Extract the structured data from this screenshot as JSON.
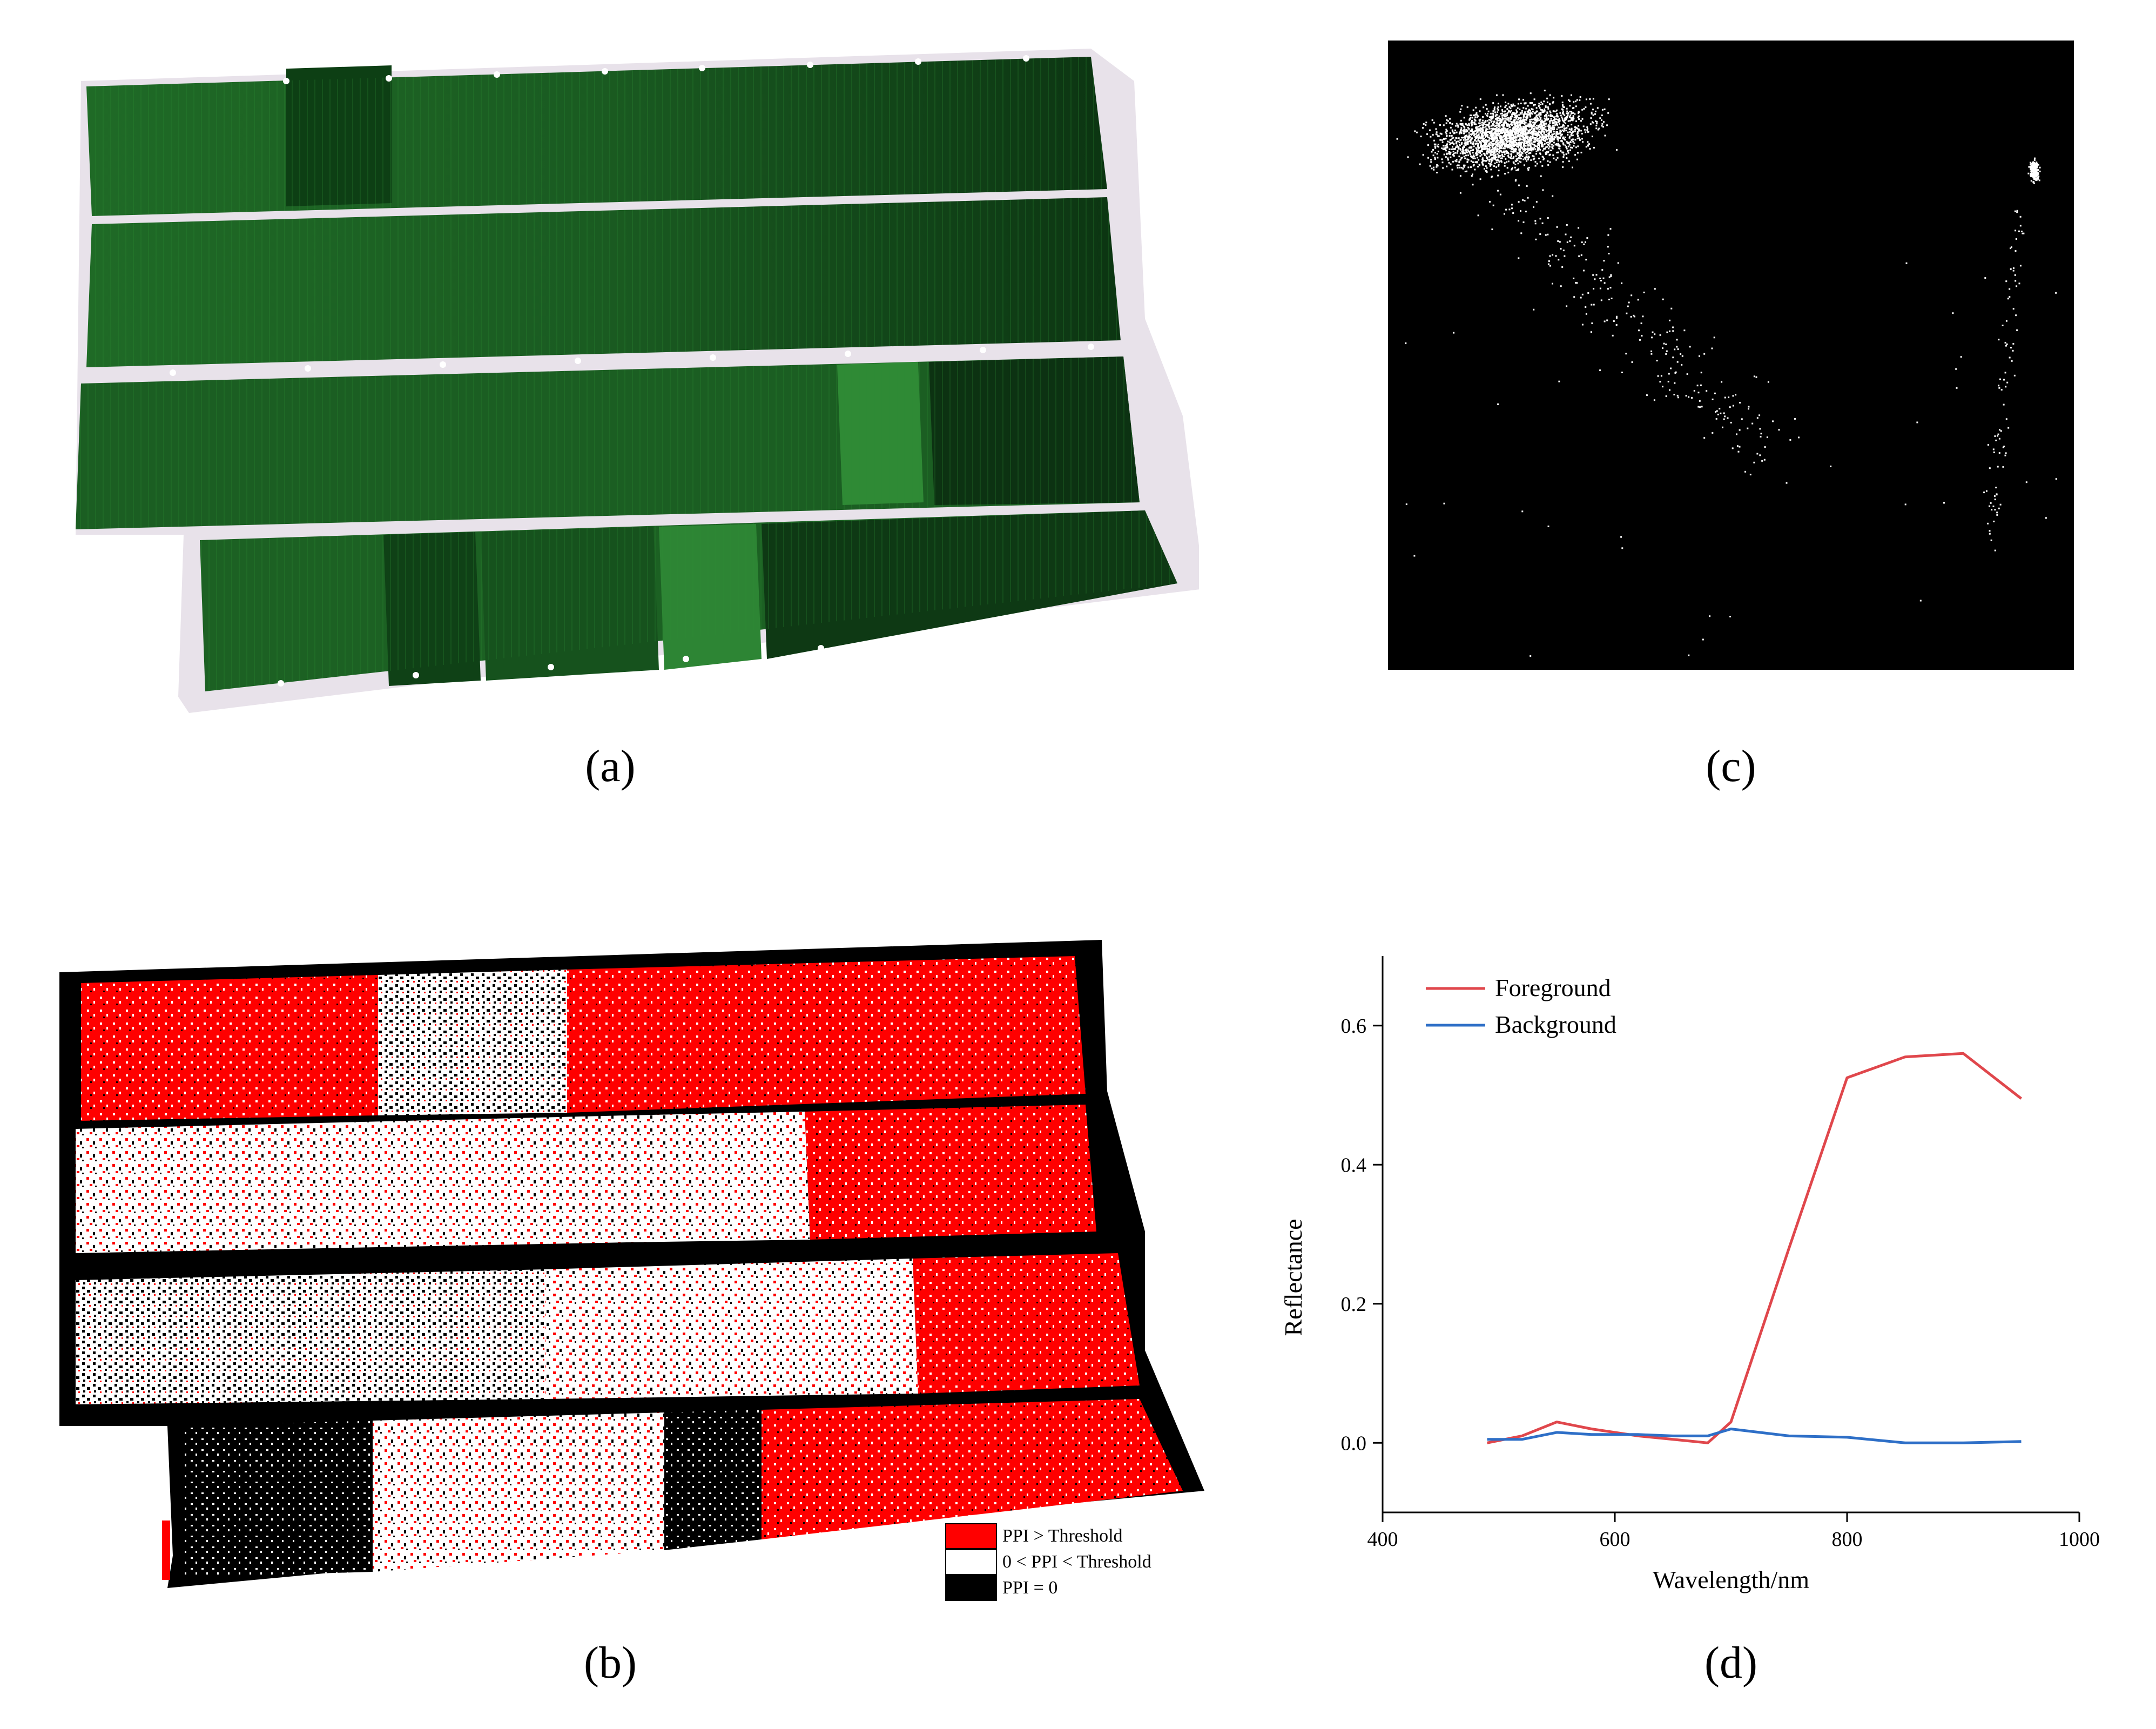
{
  "captions": {
    "a": "(a)",
    "b": "(b)",
    "c": "(c)",
    "d": "(d)"
  },
  "panel_a": {
    "description_icon": "aerial-field-image-icon",
    "colors": {
      "field_dark": "#0b3a12",
      "field_mid": "#1a5e22",
      "field_light": "#2f8a35",
      "border": "#e6e0e8"
    }
  },
  "panel_b": {
    "legend": [
      {
        "label": "PPI > Threshold",
        "color": "#ff0000"
      },
      {
        "label": "0 < PPI < Threshold",
        "color": "#ffffff"
      },
      {
        "label": "PPI = 0",
        "color": "#000000"
      }
    ]
  },
  "panel_c": {
    "colors": {
      "background": "#000000",
      "points": "#ffffff"
    }
  },
  "chart_data": {
    "type": "line",
    "xlabel": "Wavelength/nm",
    "ylabel": "Reflectance",
    "xlim": [
      400,
      1000
    ],
    "ylim": [
      -0.1,
      0.7
    ],
    "xticks": [
      "400",
      "600",
      "800",
      "1000"
    ],
    "yticks": [
      "0.0",
      "0.2",
      "0.4",
      "0.6"
    ],
    "grid": false,
    "legend_position": "top-left",
    "series": [
      {
        "name": "Foreground",
        "color": "#e0474c",
        "x": [
          490,
          520,
          550,
          580,
          620,
          650,
          680,
          700,
          750,
          800,
          850,
          900,
          950
        ],
        "y": [
          0.0,
          0.01,
          0.03,
          0.02,
          0.01,
          0.005,
          0.0,
          0.03,
          0.28,
          0.525,
          0.555,
          0.56,
          0.495
        ]
      },
      {
        "name": "Background",
        "color": "#2e6fc7",
        "x": [
          490,
          520,
          550,
          580,
          620,
          650,
          680,
          700,
          750,
          800,
          850,
          900,
          950
        ],
        "y": [
          0.005,
          0.005,
          0.015,
          0.012,
          0.012,
          0.01,
          0.01,
          0.02,
          0.01,
          0.008,
          0.0,
          0.0,
          0.002
        ]
      }
    ]
  }
}
